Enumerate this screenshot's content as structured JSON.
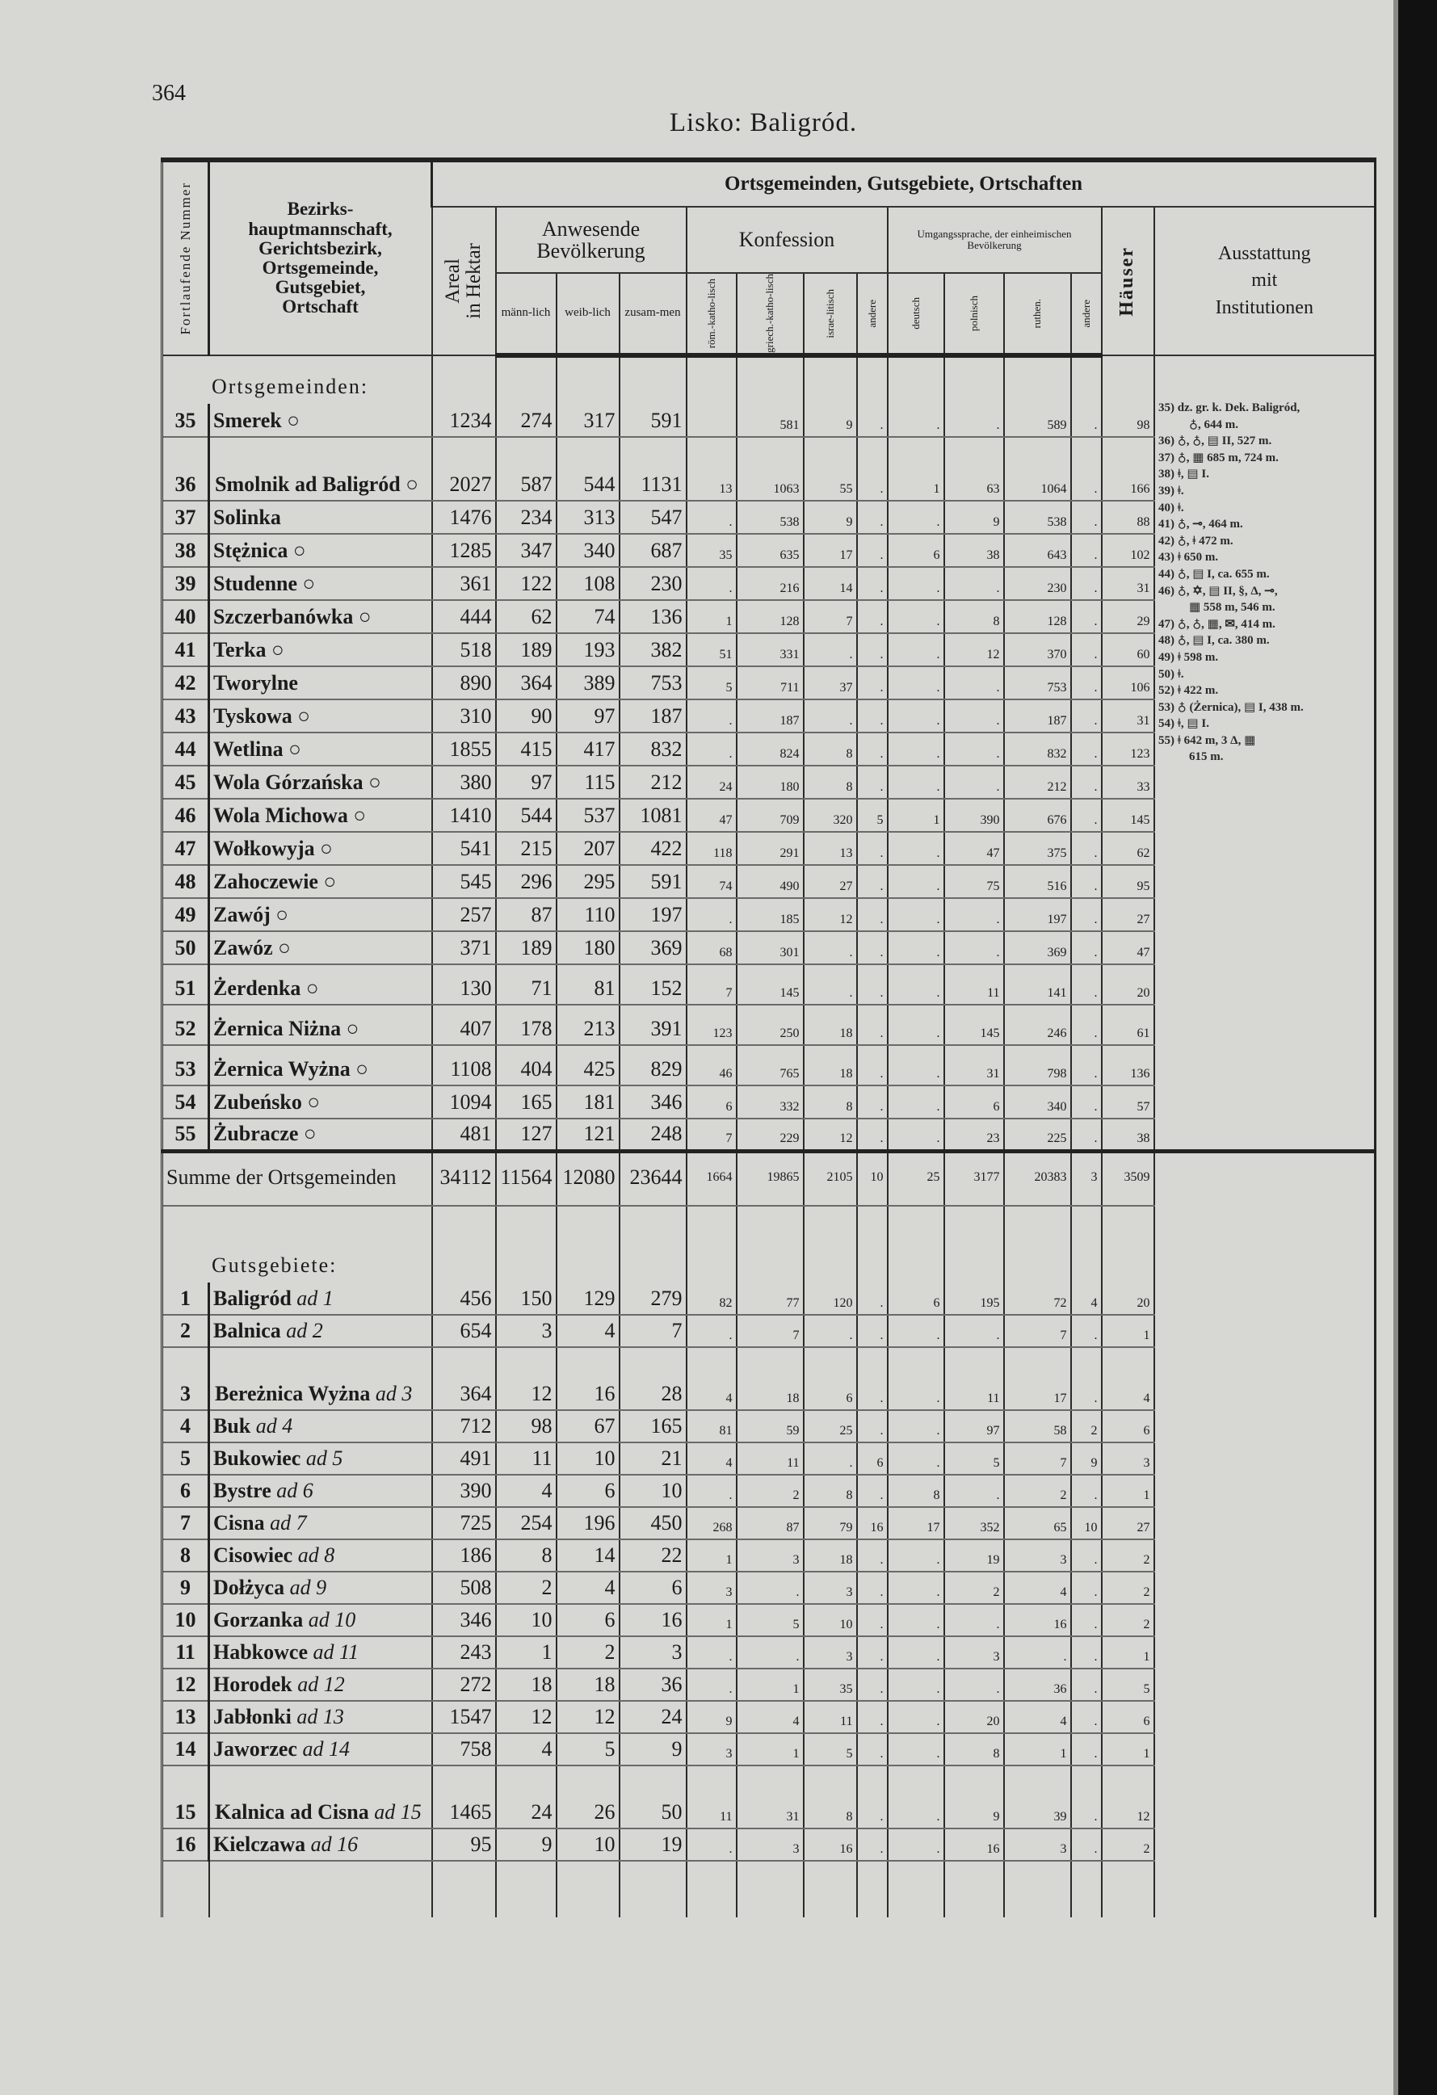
{
  "page_number": "364",
  "title": "Lisko: Baligród.",
  "header": {
    "nr": "Fortlaufende Nummer",
    "name_col": [
      "Bezirks-",
      "hauptmannschaft,",
      "Gerichtsbezirk,",
      "Ortsgemeinde,",
      "Gutsgebiet,",
      "Ortschaft"
    ],
    "group": "Ortsgemeinden, Gutsgebiete, Ortschaften",
    "areal": [
      "Areal",
      "in Hektar"
    ],
    "bevoelkerung": "Anwesende Bevölkerung",
    "maennlich": "männ-lich",
    "weiblich": "weib-lich",
    "zusammen": "zusam-men",
    "konfession": "Konfession",
    "roem": "röm.-katho-lisch",
    "griech": "griech.-katho-lisch",
    "israel": "israe-litisch",
    "andere": "andere",
    "sprache": "Umgangssprache, der einheimischen Bevölkerung",
    "deutsch": "deutsch",
    "polnisch": "polnisch",
    "ruthen": "ruthen.",
    "andere2": "andere",
    "haeuser": "Häuser",
    "ausstattung": [
      "Ausstattung",
      "mit",
      "Institutionen"
    ]
  },
  "ortsgemeinden_label": "Ortsgemeinden:",
  "ortsgemeinden": [
    {
      "nr": "35",
      "name": "Smerek ○",
      "v": [
        "1234",
        "274",
        "317",
        "591",
        "",
        "581",
        "9",
        ".",
        ".",
        ".",
        "589",
        ".",
        "98"
      ]
    },
    {
      "nr": "36",
      "name": "Smolnik ad Baligród ○",
      "double": true,
      "v": [
        "2027",
        "587",
        "544",
        "1131",
        "13",
        "1063",
        "55",
        ".",
        "1",
        "63",
        "1064",
        ".",
        "166"
      ]
    },
    {
      "nr": "37",
      "name": "Solinka",
      "v": [
        "1476",
        "234",
        "313",
        "547",
        ".",
        "538",
        "9",
        ".",
        ".",
        "9",
        "538",
        ".",
        "88"
      ]
    },
    {
      "nr": "38",
      "name": "Stężnica ○",
      "v": [
        "1285",
        "347",
        "340",
        "687",
        "35",
        "635",
        "17",
        ".",
        "6",
        "38",
        "643",
        ".",
        "102"
      ]
    },
    {
      "nr": "39",
      "name": "Studenne ○",
      "v": [
        "361",
        "122",
        "108",
        "230",
        ".",
        "216",
        "14",
        ".",
        ".",
        ".",
        "230",
        ".",
        "31"
      ]
    },
    {
      "nr": "40",
      "name": "Szczerbanówka ○",
      "v": [
        "444",
        "62",
        "74",
        "136",
        "1",
        "128",
        "7",
        ".",
        ".",
        "8",
        "128",
        ".",
        "29"
      ]
    },
    {
      "nr": "41",
      "name": "Terka ○",
      "v": [
        "518",
        "189",
        "193",
        "382",
        "51",
        "331",
        ".",
        ".",
        ".",
        "12",
        "370",
        ".",
        "60"
      ]
    },
    {
      "nr": "42",
      "name": "Tworylne",
      "v": [
        "890",
        "364",
        "389",
        "753",
        "5",
        "711",
        "37",
        ".",
        ".",
        ".",
        "753",
        ".",
        "106"
      ]
    },
    {
      "nr": "43",
      "name": "Tyskowa ○",
      "v": [
        "310",
        "90",
        "97",
        "187",
        ".",
        "187",
        ".",
        ".",
        ".",
        ".",
        "187",
        ".",
        "31"
      ]
    },
    {
      "nr": "44",
      "name": "Wetlina ○",
      "v": [
        "1855",
        "415",
        "417",
        "832",
        ".",
        "824",
        "8",
        ".",
        ".",
        ".",
        "832",
        ".",
        "123"
      ]
    },
    {
      "nr": "45",
      "name": "Wola Górzańska ○",
      "v": [
        "380",
        "97",
        "115",
        "212",
        "24",
        "180",
        "8",
        ".",
        ".",
        ".",
        "212",
        ".",
        "33"
      ]
    },
    {
      "nr": "46",
      "name": "Wola Michowa ○",
      "v": [
        "1410",
        "544",
        "537",
        "1081",
        "47",
        "709",
        "320",
        "5",
        "1",
        "390",
        "676",
        ".",
        "145"
      ]
    },
    {
      "nr": "47",
      "name": "Wołkowyja ○",
      "v": [
        "541",
        "215",
        "207",
        "422",
        "118",
        "291",
        "13",
        ".",
        ".",
        "47",
        "375",
        ".",
        "62"
      ]
    },
    {
      "nr": "48",
      "name": "Zahoczewie ○",
      "v": [
        "545",
        "296",
        "295",
        "591",
        "74",
        "490",
        "27",
        ".",
        ".",
        "75",
        "516",
        ".",
        "95"
      ]
    },
    {
      "nr": "49",
      "name": "Zawój ○",
      "v": [
        "257",
        "87",
        "110",
        "197",
        ".",
        "185",
        "12",
        ".",
        ".",
        ".",
        "197",
        ".",
        "27"
      ]
    },
    {
      "nr": "50",
      "name": "Zawóz ○",
      "v": [
        "371",
        "189",
        "180",
        "369",
        "68",
        "301",
        ".",
        ".",
        ".",
        ".",
        "369",
        ".",
        "47"
      ]
    },
    {
      "nr": "51",
      "name": "Żerdenka ○",
      "tall": true,
      "v": [
        "130",
        "71",
        "81",
        "152",
        "7",
        "145",
        ".",
        ".",
        ".",
        "11",
        "141",
        ".",
        "20"
      ]
    },
    {
      "nr": "52",
      "name": "Żernica Niżna ○",
      "tall": true,
      "v": [
        "407",
        "178",
        "213",
        "391",
        "123",
        "250",
        "18",
        ".",
        ".",
        "145",
        "246",
        ".",
        "61"
      ]
    },
    {
      "nr": "53",
      "name": "Żernica Wyżna ○",
      "tall": true,
      "v": [
        "1108",
        "404",
        "425",
        "829",
        "46",
        "765",
        "18",
        ".",
        ".",
        "31",
        "798",
        ".",
        "136"
      ]
    },
    {
      "nr": "54",
      "name": "Zubeńsko ○",
      "v": [
        "1094",
        "165",
        "181",
        "346",
        "6",
        "332",
        "8",
        ".",
        ".",
        "6",
        "340",
        ".",
        "57"
      ]
    },
    {
      "nr": "55",
      "name": "Żubracze ○",
      "v": [
        "481",
        "127",
        "121",
        "248",
        "7",
        "229",
        "12",
        ".",
        ".",
        "23",
        "225",
        ".",
        "38"
      ]
    }
  ],
  "summe": {
    "label": "Summe der Ortsgemeinden",
    "v": [
      "34112",
      "11564",
      "12080",
      "23644",
      "1664",
      "19865",
      "2105",
      "10",
      "25",
      "3177",
      "20383",
      "3",
      "3509"
    ]
  },
  "gutsgebiete_label": "Gutsgebiete:",
  "gutsgebiete": [
    {
      "nr": "1",
      "name": "Baligród",
      "ad": "ad 1",
      "v": [
        "456",
        "150",
        "129",
        "279",
        "82",
        "77",
        "120",
        ".",
        "6",
        "195",
        "72",
        "4",
        "20"
      ]
    },
    {
      "nr": "2",
      "name": "Balnica",
      "ad": "ad 2",
      "v": [
        "654",
        "3",
        "4",
        "7",
        ".",
        "7",
        ".",
        ".",
        ".",
        ".",
        "7",
        ".",
        "1"
      ]
    },
    {
      "nr": "3",
      "name": "Bereżnica Wyżna",
      "ad": "ad 3",
      "double": true,
      "v": [
        "364",
        "12",
        "16",
        "28",
        "4",
        "18",
        "6",
        ".",
        ".",
        "11",
        "17",
        ".",
        "4"
      ]
    },
    {
      "nr": "4",
      "name": "Buk",
      "ad": "ad 4",
      "v": [
        "712",
        "98",
        "67",
        "165",
        "81",
        "59",
        "25",
        ".",
        ".",
        "97",
        "58",
        "2",
        "6"
      ]
    },
    {
      "nr": "5",
      "name": "Bukowiec",
      "ad": "ad 5",
      "v": [
        "491",
        "11",
        "10",
        "21",
        "4",
        "11",
        ".",
        "6",
        ".",
        "5",
        "7",
        "9",
        "3"
      ]
    },
    {
      "nr": "6",
      "name": "Bystre",
      "ad": "ad 6",
      "v": [
        "390",
        "4",
        "6",
        "10",
        ".",
        "2",
        "8",
        ".",
        "8",
        ".",
        "2",
        ".",
        "1"
      ]
    },
    {
      "nr": "7",
      "name": "Cisna",
      "ad": "ad 7",
      "v": [
        "725",
        "254",
        "196",
        "450",
        "268",
        "87",
        "79",
        "16",
        "17",
        "352",
        "65",
        "10",
        "27"
      ]
    },
    {
      "nr": "8",
      "name": "Cisowiec",
      "ad": "ad 8",
      "v": [
        "186",
        "8",
        "14",
        "22",
        "1",
        "3",
        "18",
        ".",
        ".",
        "19",
        "3",
        ".",
        "2"
      ]
    },
    {
      "nr": "9",
      "name": "Dołżyca",
      "ad": "ad 9",
      "v": [
        "508",
        "2",
        "4",
        "6",
        "3",
        ".",
        "3",
        ".",
        ".",
        "2",
        "4",
        ".",
        "2"
      ]
    },
    {
      "nr": "10",
      "name": "Gorzanka",
      "ad": "ad 10",
      "v": [
        "346",
        "10",
        "6",
        "16",
        "1",
        "5",
        "10",
        ".",
        ".",
        ".",
        "16",
        ".",
        "2"
      ]
    },
    {
      "nr": "11",
      "name": "Habkowce",
      "ad": "ad 11",
      "v": [
        "243",
        "1",
        "2",
        "3",
        ".",
        ".",
        "3",
        ".",
        ".",
        "3",
        ".",
        ".",
        "1"
      ]
    },
    {
      "nr": "12",
      "name": "Horodek",
      "ad": "ad 12",
      "v": [
        "272",
        "18",
        "18",
        "36",
        ".",
        "1",
        "35",
        ".",
        ".",
        ".",
        "36",
        ".",
        "5"
      ]
    },
    {
      "nr": "13",
      "name": "Jabłonki",
      "ad": "ad 13",
      "v": [
        "1547",
        "12",
        "12",
        "24",
        "9",
        "4",
        "11",
        ".",
        ".",
        "20",
        "4",
        ".",
        "6"
      ]
    },
    {
      "nr": "14",
      "name": "Jaworzec",
      "ad": "ad 14",
      "v": [
        "758",
        "4",
        "5",
        "9",
        "3",
        "1",
        "5",
        ".",
        ".",
        "8",
        "1",
        ".",
        "1"
      ]
    },
    {
      "nr": "15",
      "name": "Kalnica ad Cisna",
      "ad": "ad 15",
      "double": true,
      "v": [
        "1465",
        "24",
        "26",
        "50",
        "11",
        "31",
        "8",
        ".",
        ".",
        "9",
        "39",
        ".",
        "12"
      ]
    },
    {
      "nr": "16",
      "name": "Kielczawa",
      "ad": "ad 16",
      "v": [
        "95",
        "9",
        "10",
        "19",
        ".",
        "3",
        "16",
        ".",
        ".",
        "16",
        "3",
        ".",
        "2"
      ]
    }
  ],
  "notes": [
    "35) dz. gr. k. Dek. Baligród,",
    "♁, 644 m.",
    "36) ♁, ♁, ▤ II, 527 m.",
    "37) ♁, ▦ 685 m, 724 m.",
    "38) ǂ, ▤ I.",
    "39) ǂ.",
    "40) ǂ.",
    "41) ♁, ⊸, 464 m.",
    "42) ♁, ǂ 472 m.",
    "43) ǂ 650 m.",
    "44) ♁, ▤ I, ca. 655 m.",
    "46) ♁, ✡, ▤ II, §, Δ, ⊸,",
    "▦ 558 m, 546 m.",
    "47) ♁, ♁, ▦, ✉, 414 m.",
    "48) ♁, ▤ I, ca. 380 m.",
    "49) ǂ 598 m.",
    "50) ǂ.",
    "52) ǂ 422 m.",
    "53) ♁ (Żernica), ▤ I, 438 m.",
    "54) ǂ, ▤ I.",
    "55) ǂ 642 m, 3 Δ, ▦",
    "615 m."
  ],
  "colors": {
    "paper": "#d7d7d4",
    "ink": "#1c1c1c",
    "scan_edge": "#111111"
  }
}
